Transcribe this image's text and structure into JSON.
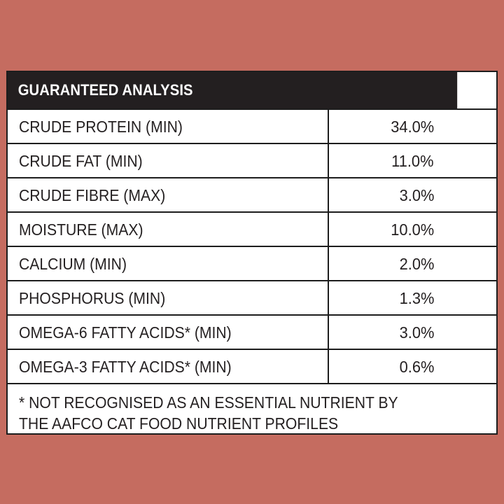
{
  "header": {
    "title": "GUARANTEED ANALYSIS"
  },
  "rows": [
    {
      "name": "CRUDE PROTEIN (MIN)",
      "value": "34.0%"
    },
    {
      "name": "CRUDE FAT (MIN)",
      "value": "11.0%"
    },
    {
      "name": "CRUDE FIBRE (MAX)",
      "value": "3.0%"
    },
    {
      "name": "MOISTURE (MAX)",
      "value": "10.0%"
    },
    {
      "name": "CALCIUM (MIN)",
      "value": "2.0%"
    },
    {
      "name": "PHOSPHORUS (MIN)",
      "value": "1.3%"
    },
    {
      "name": "OMEGA-6 FATTY ACIDS* (MIN)",
      "value": "3.0%"
    },
    {
      "name": "OMEGA-3 FATTY ACIDS* (MIN)",
      "value": "0.6%"
    }
  ],
  "footnote": {
    "line1": "* NOT RECOGNISED AS AN ESSENTIAL NUTRIENT BY",
    "line2": "THE AAFCO CAT FOOD NUTRIENT PROFILES"
  },
  "colors": {
    "background": "#c56c60",
    "header_bg": "#231f20",
    "panel_bg": "#ffffff",
    "text": "#231f20"
  }
}
